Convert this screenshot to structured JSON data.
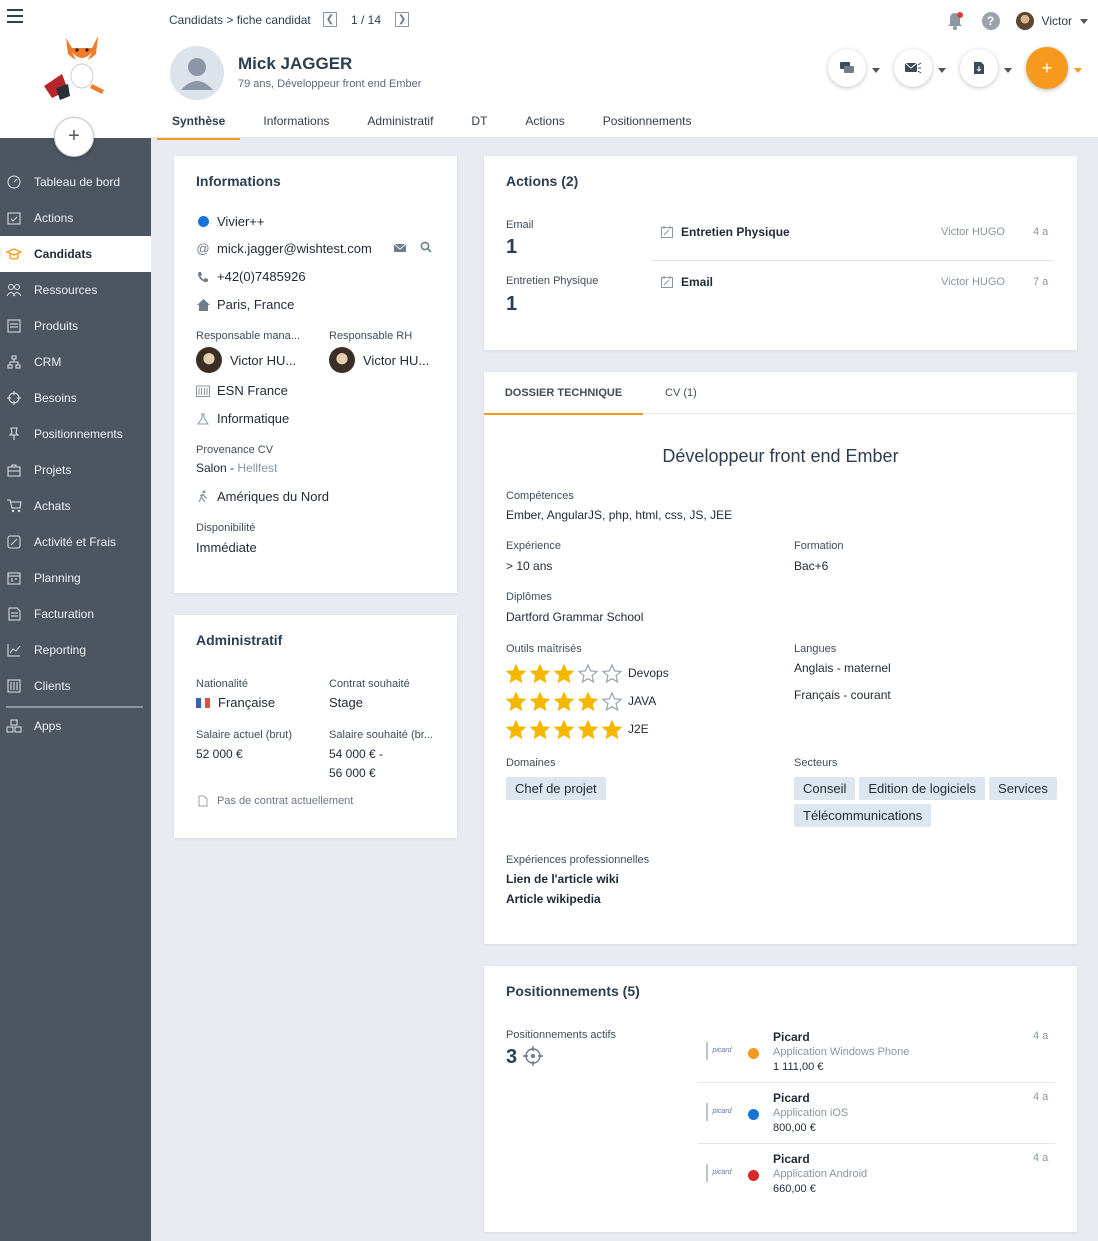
{
  "sidebar": {
    "items": [
      {
        "label": "Tableau de bord",
        "icon": "dashboard-icon"
      },
      {
        "label": "Actions",
        "icon": "calendar-check-icon"
      },
      {
        "label": "Candidats",
        "icon": "graduation-cap-icon",
        "active": true
      },
      {
        "label": "Ressources",
        "icon": "users-icon"
      },
      {
        "label": "Produits",
        "icon": "box-icon"
      },
      {
        "label": "CRM",
        "icon": "sitemap-icon"
      },
      {
        "label": "Besoins",
        "icon": "target-icon"
      },
      {
        "label": "Positionnements",
        "icon": "pin-icon"
      },
      {
        "label": "Projets",
        "icon": "briefcase-icon"
      },
      {
        "label": "Achats",
        "icon": "cart-icon"
      },
      {
        "label": "Activité et Frais",
        "icon": "pen-square-icon"
      },
      {
        "label": "Planning",
        "icon": "calendar-icon"
      },
      {
        "label": "Facturation",
        "icon": "invoice-icon"
      },
      {
        "label": "Reporting",
        "icon": "chart-line-icon"
      },
      {
        "label": "Clients",
        "icon": "building-icon"
      },
      {
        "label": "Apps",
        "icon": "apps-icon"
      }
    ]
  },
  "header": {
    "breadcrumb": "Candidats > fiche candidat",
    "pager": "1 / 14",
    "user": "Victor",
    "candidate_name": "Mick JAGGER",
    "candidate_sub": "79 ans, Développeur front end Ember",
    "tabs": [
      "Synthèse",
      "Informations",
      "Administratif",
      "DT",
      "Actions",
      "Positionnements"
    ],
    "add_label": "+"
  },
  "info": {
    "title": "Informations",
    "agency": "Vivier++",
    "agency_color": "#1a73d9",
    "email": "mick.jagger@wishtest.com",
    "phone": "+42(0)7485926",
    "location": "Paris, France",
    "resp_manager_label": "Responsable mana...",
    "resp_manager": "Victor HU...",
    "resp_rh_label": "Responsable RH",
    "resp_rh": "Victor HU...",
    "company": "ESN France",
    "pole": "Informatique",
    "provenance_label": "Provenance CV",
    "provenance_type": "Salon",
    "provenance_dash": " - ",
    "provenance_name": "Hellfest",
    "mobility": "Amériques du Nord",
    "dispo_label": "Disponibilité",
    "dispo": "Immédiate"
  },
  "admin": {
    "title": "Administratif",
    "nationality_label": "Nationalité",
    "nationality": "Française",
    "contract_label": "Contrat souhaité",
    "contract": "Stage",
    "salary_label": "Salaire actuel (brut)",
    "salary": "52 000 €",
    "wish_label": "Salaire souhaité (br...",
    "wish_line1": "54 000 € -",
    "wish_line2": "56 000 €",
    "no_contract": "Pas de contrat actuellement"
  },
  "actions": {
    "title": "Actions (2)",
    "stats": [
      {
        "label": "Email",
        "count": "1"
      },
      {
        "label": "Entretien Physique",
        "count": "1"
      }
    ],
    "list": [
      {
        "name": "Entretien Physique",
        "author": "Victor HUGO",
        "age": "4 a"
      },
      {
        "name": "Email",
        "author": "Victor HUGO",
        "age": "7 a"
      }
    ]
  },
  "dt": {
    "tabs": [
      "DOSSIER TECHNIQUE",
      "CV (1)"
    ],
    "headline": "Développeur front end Ember",
    "skills_label": "Compétences",
    "skills": "Ember, AngularJS, php, html, css, JS, JEE",
    "exp_label": "Expérience",
    "exp": "> 10 ans",
    "formation_label": "Formation",
    "formation": "Bac+6",
    "diplomas_label": "Diplômes",
    "diplomas": "Dartford Grammar School",
    "tools_label": "Outils maîtrisés",
    "tools": [
      {
        "name": "Devops",
        "rating": 3
      },
      {
        "name": "JAVA",
        "rating": 4
      },
      {
        "name": "J2E",
        "rating": 5
      }
    ],
    "languages_label": "Langues",
    "languages": [
      "Anglais - maternel",
      "Français - courant"
    ],
    "domains_label": "Domaines",
    "domains": [
      "Chef de projet"
    ],
    "sectors_label": "Secteurs",
    "sectors": [
      "Conseil",
      "Edition de logiciels",
      "Services",
      "Télécommunications"
    ],
    "pro_label": "Expériences professionnelles",
    "pro_links": [
      "Lien de l'article wiki",
      "Article wikipedia"
    ]
  },
  "positions": {
    "title": "Positionnements (5)",
    "active_label": "Positionnements actifs",
    "active_count": "3",
    "list": [
      {
        "company": "Picard",
        "project": "Application Windows Phone",
        "amount": "1 111,00 €",
        "age": "4 a",
        "status_color": "#f7991c",
        "logo": "picard"
      },
      {
        "company": "Picard",
        "project": "Application iOS",
        "amount": "800,00 €",
        "age": "4 a",
        "status_color": "#1a73d9",
        "logo": "picard"
      },
      {
        "company": "Picard",
        "project": "Application Android",
        "amount": "660,00 €",
        "age": "4 a",
        "status_color": "#d62828",
        "logo": "picard"
      }
    ]
  },
  "colors": {
    "accent": "#f7991c",
    "sidebar": "#4c5560"
  }
}
